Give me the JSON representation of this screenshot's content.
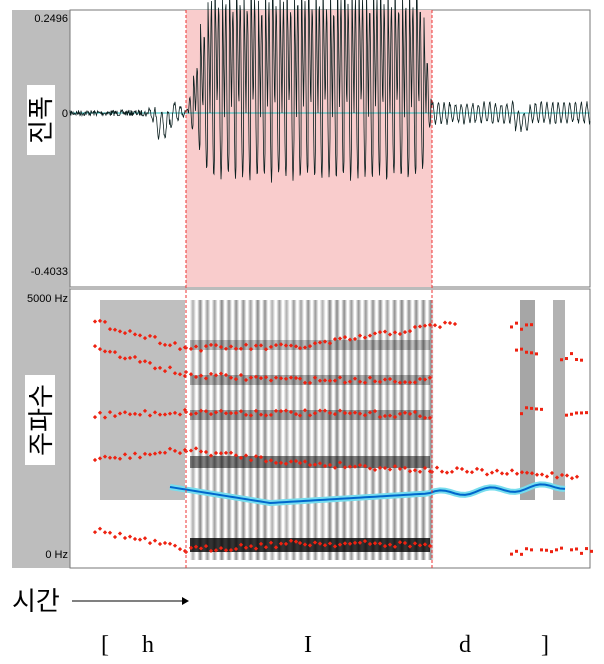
{
  "waveform": {
    "label": "진폭",
    "top_value": "0.2496",
    "zero_value": "0",
    "bottom_value": "-0.4033"
  },
  "spectrogram": {
    "label": "주파수",
    "top_value": "5000 Hz",
    "bottom_value": "0 Hz"
  },
  "time_label": "시간",
  "transcription": [
    "[",
    "h",
    "I",
    "d",
    "]"
  ]
}
